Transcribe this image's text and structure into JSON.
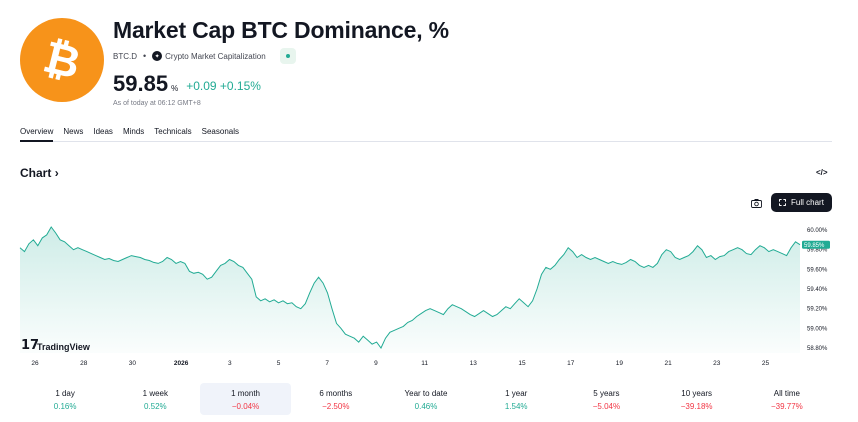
{
  "header": {
    "logo_glyph": "₿",
    "logo_color": "#f7931a",
    "title": "Market Cap BTC Dominance, %",
    "symbol": "BTC.D",
    "exchange_icon": "tv-logo-icon",
    "source": "Crypto Market Capitalization",
    "price": "59.85",
    "unit": "%",
    "change": "+0.09 +0.15%",
    "as_of": "As of today at 06:12 GMT+8"
  },
  "tabs": [
    {
      "label": "Overview",
      "active": true
    },
    {
      "label": "News",
      "active": false
    },
    {
      "label": "Ideas",
      "active": false
    },
    {
      "label": "Minds",
      "active": false
    },
    {
      "label": "Technicals",
      "active": false
    },
    {
      "label": "Seasonals",
      "active": false
    }
  ],
  "chart_section": {
    "heading": "Chart",
    "heading_chevron": "›",
    "embed_icon": "</>",
    "camera_icon": "camera-icon",
    "full_chart_label": "Full chart",
    "watermark": "TradingView"
  },
  "chart_data": {
    "type": "area",
    "series_color": "#22ab94",
    "x_tick_labels": [
      "26",
      "28",
      "30",
      "2026",
      "3",
      "5",
      "7",
      "9",
      "11",
      "13",
      "15",
      "17",
      "19",
      "21",
      "23",
      "25"
    ],
    "y_tick_labels": [
      "60.00%",
      "59.80%",
      "59.60%",
      "59.40%",
      "59.20%",
      "59.00%",
      "58.80%"
    ],
    "ylim": [
      58.8,
      60.0
    ],
    "last_value_label": "59.85%",
    "last_value": 59.85,
    "y": [
      59.82,
      59.78,
      59.86,
      59.9,
      59.84,
      59.92,
      59.95,
      60.03,
      59.97,
      59.9,
      59.88,
      59.84,
      59.8,
      59.82,
      59.8,
      59.78,
      59.76,
      59.74,
      59.72,
      59.7,
      59.71,
      59.69,
      59.68,
      59.7,
      59.72,
      59.74,
      59.73,
      59.72,
      59.7,
      59.69,
      59.67,
      59.66,
      59.68,
      59.72,
      59.7,
      59.66,
      59.68,
      59.66,
      59.58,
      59.56,
      59.57,
      59.55,
      59.5,
      59.52,
      59.58,
      59.64,
      59.66,
      59.7,
      59.68,
      59.64,
      59.62,
      59.56,
      59.5,
      59.32,
      59.28,
      59.3,
      59.27,
      59.29,
      59.26,
      59.28,
      59.25,
      59.26,
      59.22,
      59.2,
      59.25,
      59.36,
      59.46,
      59.52,
      59.46,
      59.36,
      59.2,
      59.05,
      59.0,
      58.94,
      58.92,
      58.9,
      58.86,
      58.92,
      58.88,
      58.84,
      58.86,
      58.8,
      58.9,
      58.96,
      58.98,
      59.0,
      59.02,
      59.06,
      59.08,
      59.12,
      59.15,
      59.18,
      59.2,
      59.18,
      59.16,
      59.14,
      59.2,
      59.24,
      59.22,
      59.2,
      59.17,
      59.14,
      59.12,
      59.15,
      59.18,
      59.15,
      59.12,
      59.14,
      59.18,
      59.22,
      59.2,
      59.25,
      59.3,
      59.26,
      59.22,
      59.28,
      59.4,
      59.55,
      59.62,
      59.6,
      59.64,
      59.7,
      59.75,
      59.82,
      59.78,
      59.72,
      59.75,
      59.72,
      59.7,
      59.72,
      59.7,
      59.68,
      59.66,
      59.68,
      59.66,
      59.65,
      59.67,
      59.7,
      59.68,
      59.64,
      59.62,
      59.64,
      59.62,
      59.66,
      59.75,
      59.8,
      59.78,
      59.72,
      59.7,
      59.72,
      59.74,
      59.78,
      59.84,
      59.8,
      59.72,
      59.74,
      59.7,
      59.73,
      59.74,
      59.78,
      59.8,
      59.82,
      59.8,
      59.76,
      59.75,
      59.8,
      59.84,
      59.82,
      59.78,
      59.8,
      59.78,
      59.76,
      59.74,
      59.82,
      59.88,
      59.85
    ]
  },
  "periods": [
    {
      "label": "1 day",
      "value": "0.16%",
      "sign": "pos",
      "selected": false
    },
    {
      "label": "1 week",
      "value": "0.52%",
      "sign": "pos",
      "selected": false
    },
    {
      "label": "1 month",
      "value": "−0.04%",
      "sign": "neg",
      "selected": true
    },
    {
      "label": "6 months",
      "value": "−2.50%",
      "sign": "neg",
      "selected": false
    },
    {
      "label": "Year to date",
      "value": "0.46%",
      "sign": "pos",
      "selected": false
    },
    {
      "label": "1 year",
      "value": "1.54%",
      "sign": "pos",
      "selected": false
    },
    {
      "label": "5 years",
      "value": "−5.04%",
      "sign": "neg",
      "selected": false
    },
    {
      "label": "10 years",
      "value": "−39.18%",
      "sign": "neg",
      "selected": false
    },
    {
      "label": "All time",
      "value": "−39.77%",
      "sign": "neg",
      "selected": false
    }
  ]
}
